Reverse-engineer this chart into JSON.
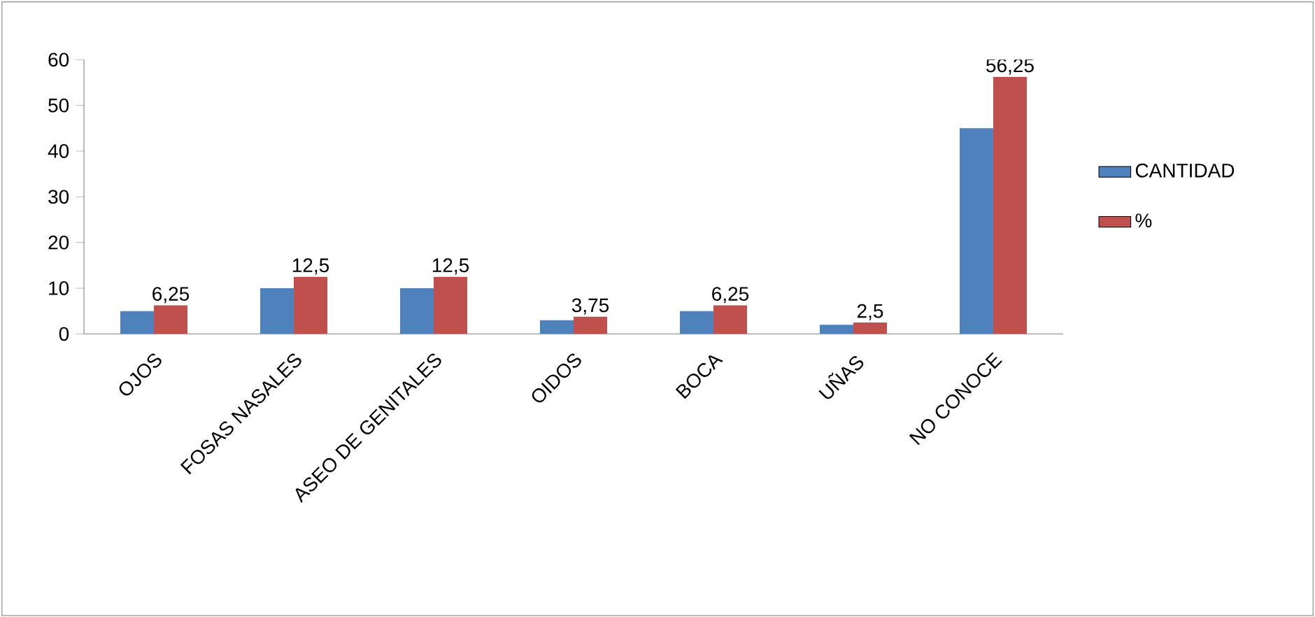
{
  "chart_data": {
    "type": "bar",
    "categories": [
      "OJOS",
      "FOSAS NASALES",
      "ASEO DE GENITALES",
      "OIDOS",
      "BOCA",
      "UÑAS",
      "NO CONOCE"
    ],
    "series": [
      {
        "name": "CANTIDAD",
        "color": "#4f81bd",
        "values": [
          5,
          10,
          10,
          3,
          5,
          2,
          45
        ]
      },
      {
        "name": "%",
        "color": "#c0504d",
        "values": [
          6.25,
          12.5,
          12.5,
          3.75,
          6.25,
          2.5,
          56.25
        ],
        "value_labels": [
          "6,25",
          "12,5",
          "12,5",
          "3,75",
          "6,25",
          "2,5",
          "56,25"
        ]
      }
    ],
    "ylim": [
      0,
      60
    ],
    "yticks": [
      0,
      10,
      20,
      30,
      40,
      50,
      60
    ],
    "grid": false,
    "legend": "right"
  }
}
